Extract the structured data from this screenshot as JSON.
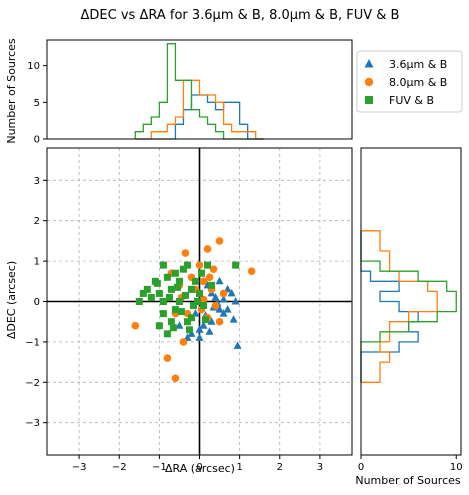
{
  "chart_data": {
    "type": "scatter",
    "title": "ΔDEC vs ΔRA for 3.6μm & B, 8.0μm & B, FUV & B",
    "xlabel": "ΔRA (arcsec)",
    "ylabel": "ΔDEC (arcsec)",
    "xlim": [
      -3.8,
      3.8
    ],
    "ylim": [
      -3.8,
      3.8
    ],
    "xticks": [
      "−3",
      "−2",
      "−1",
      "0",
      "1",
      "2",
      "3"
    ],
    "yticks": [
      "−3",
      "−2",
      "−1",
      "0",
      "1",
      "2",
      "3"
    ],
    "grid": true,
    "legend_position": "top-right",
    "series": [
      {
        "name": "3.6μm & B",
        "color": "#1f77b4",
        "marker": "triangle",
        "points": [
          [
            0.8,
            0.2
          ],
          [
            0.6,
            -0.3
          ],
          [
            0.5,
            -0.2
          ],
          [
            0.9,
            0.0
          ],
          [
            0.7,
            0.3
          ],
          [
            0.4,
            0.1
          ],
          [
            0.3,
            -0.5
          ],
          [
            0.0,
            -0.7
          ],
          [
            -0.2,
            -0.8
          ],
          [
            -0.3,
            -0.9
          ],
          [
            0.1,
            -0.6
          ],
          [
            0.95,
            -1.1
          ],
          [
            0.2,
            0.4
          ],
          [
            0.5,
            0.5
          ],
          [
            -0.1,
            -0.3
          ],
          [
            0.6,
            0.05
          ],
          [
            0.35,
            -0.15
          ],
          [
            0.15,
            -0.35
          ],
          [
            -0.5,
            -0.6
          ],
          [
            0.0,
            -0.9
          ],
          [
            0.85,
            -0.45
          ],
          [
            0.3,
            0.2
          ],
          [
            0.45,
            -0.05
          ],
          [
            0.7,
            -0.2
          ],
          [
            0.25,
            -0.75
          ]
        ]
      },
      {
        "name": "8.0μm & B",
        "color": "#ff7f0e",
        "marker": "circle",
        "points": [
          [
            -0.35,
            1.2
          ],
          [
            0.5,
            1.5
          ],
          [
            1.3,
            0.75
          ],
          [
            -1.6,
            -0.6
          ],
          [
            -0.6,
            -1.9
          ],
          [
            -0.8,
            -1.4
          ],
          [
            -0.4,
            -1.0
          ],
          [
            0.2,
            1.3
          ],
          [
            0.1,
            0.5
          ],
          [
            0.3,
            0.3
          ],
          [
            -0.2,
            0.6
          ],
          [
            0.0,
            0.9
          ],
          [
            0.4,
            -0.1
          ],
          [
            0.2,
            -0.4
          ],
          [
            -0.5,
            0.4
          ],
          [
            -0.7,
            0.7
          ],
          [
            0.6,
            0.2
          ],
          [
            0.35,
            0.8
          ],
          [
            -0.3,
            -0.3
          ],
          [
            0.1,
            0.05
          ],
          [
            -0.1,
            0.3
          ],
          [
            0.5,
            -0.5
          ],
          [
            -0.6,
            -0.3
          ],
          [
            0.25,
            0.6
          ],
          [
            -0.45,
            0.1
          ],
          [
            0.05,
            -0.2
          ]
        ]
      },
      {
        "name": "FUV & B",
        "color": "#2ca02c",
        "marker": "square",
        "points": [
          [
            -1.4,
            0.2
          ],
          [
            -1.5,
            0.0
          ],
          [
            -1.1,
            0.5
          ],
          [
            -0.9,
            0.9
          ],
          [
            -0.8,
            0.6
          ],
          [
            -1.0,
            0.2
          ],
          [
            -0.7,
            0.3
          ],
          [
            -0.6,
            -0.2
          ],
          [
            -0.5,
            0.0
          ],
          [
            -0.3,
            -0.5
          ],
          [
            -0.2,
            -0.4
          ],
          [
            -1.2,
            0.1
          ],
          [
            -1.0,
            -0.6
          ],
          [
            -0.9,
            -0.3
          ],
          [
            -0.8,
            -0.8
          ],
          [
            -0.4,
            0.8
          ],
          [
            -0.3,
            0.9
          ],
          [
            -0.1,
            0.5
          ],
          [
            0.0,
            0.2
          ],
          [
            0.1,
            -0.1
          ],
          [
            0.2,
            0.9
          ],
          [
            0.3,
            0.4
          ],
          [
            -0.6,
            0.7
          ],
          [
            -0.5,
            0.5
          ],
          [
            -0.7,
            -0.5
          ],
          [
            -1.3,
            0.3
          ],
          [
            -0.2,
            0.3
          ],
          [
            -0.15,
            -0.1
          ],
          [
            0.05,
            0.7
          ],
          [
            0.9,
            0.9
          ],
          [
            -0.9,
            0.0
          ],
          [
            -0.45,
            -0.25
          ],
          [
            -0.65,
            -0.65
          ],
          [
            -0.35,
            0.15
          ],
          [
            -1.05,
            0.45
          ],
          [
            -0.55,
            0.35
          ],
          [
            -0.25,
            -0.7
          ],
          [
            0.15,
            -0.45
          ],
          [
            -0.75,
            0.1
          ],
          [
            -0.05,
            0.0
          ]
        ]
      }
    ],
    "hist_top": {
      "ylabel": "Number of Sources",
      "yticks": [
        "0",
        "5",
        "10"
      ],
      "ylim": [
        0,
        13.5
      ],
      "edges": [
        -1.6,
        -1.4,
        -1.2,
        -1.0,
        -0.8,
        -0.6,
        -0.4,
        -0.2,
        0.0,
        0.2,
        0.4,
        0.6,
        0.8,
        1.0,
        1.2,
        1.4,
        1.6
      ],
      "counts": [
        [
          0,
          0,
          0,
          0,
          0,
          2,
          4,
          6,
          6,
          5,
          4,
          5,
          5,
          2,
          0,
          0
        ],
        [
          0,
          0,
          1,
          1,
          2,
          3,
          8,
          8,
          6,
          6,
          5,
          2,
          1,
          1,
          1,
          0
        ],
        [
          1,
          2,
          3,
          5,
          13,
          8,
          8,
          4,
          3,
          2,
          1,
          0,
          0,
          0,
          0,
          0
        ]
      ]
    },
    "hist_right": {
      "xlabel": "Number of Sources",
      "xticks": [
        "0",
        "10"
      ],
      "xlim": [
        0,
        10.5
      ],
      "edges": [
        -2.0,
        -1.75,
        -1.5,
        -1.25,
        -1.0,
        -0.75,
        -0.5,
        -0.25,
        0.0,
        0.25,
        0.5,
        0.75,
        1.0,
        1.25,
        1.5,
        1.75
      ],
      "counts": [
        [
          0,
          0,
          0,
          4,
          6,
          5,
          6,
          4,
          2,
          4,
          1,
          0,
          0,
          0,
          0
        ],
        [
          2,
          2,
          3,
          2,
          3,
          3,
          5,
          8,
          8,
          7,
          4,
          3,
          3,
          2,
          2
        ],
        [
          0,
          0,
          0,
          0,
          2,
          5,
          8,
          10,
          10,
          9,
          6,
          2,
          0,
          0,
          0
        ]
      ]
    }
  }
}
